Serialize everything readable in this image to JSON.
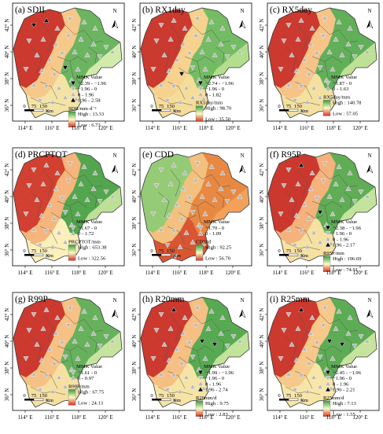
{
  "figure": {
    "axis_labels": {
      "lon_ticks": [
        "114° E",
        "116° E",
        "118° E",
        "120° E"
      ],
      "lat_ticks": [
        "42° N",
        "40° N",
        "38° N",
        "36° N"
      ]
    },
    "north_arrow_label": "N",
    "scale_bar": {
      "labels": [
        "0",
        "75",
        "150"
      ],
      "unit": "Km"
    },
    "mmk_title": "MMK Value",
    "high_prefix": "High : ",
    "low_prefix": "Low : "
  },
  "panels": [
    {
      "id": "a",
      "title": "(a) SDII",
      "colorbar": {
        "label": "SDII/mm·d⁻¹",
        "high": "13.33",
        "low": "6.73",
        "top": "#3a9a3a",
        "mid": "#fbfbc8",
        "bottom": "#d7301f"
      },
      "regions": {
        "west": "#c8312a",
        "center": "#f6c98a",
        "south": "#f2e6a8",
        "east": "#64b45e",
        "coast": "#d8eeb0"
      },
      "mmk_legend": [
        {
          "symbol": "down-black",
          "range": "−2.39 - −1.96"
        },
        {
          "symbol": "down-grey",
          "range": "−1.96 - 0"
        },
        {
          "symbol": "up-grey",
          "range": "0 - 1.96"
        },
        {
          "symbol": "up-black",
          "range": "1.96 - 2.58"
        }
      ]
    },
    {
      "id": "b",
      "title": "(b) RX1day",
      "colorbar": {
        "label": "RX1day/mm",
        "high": "98.70",
        "low": "35.50",
        "top": "#3a9a3a",
        "mid": "#fbfbc8",
        "bottom": "#d7301f"
      },
      "regions": {
        "west": "#c8312a",
        "center": "#f7d28f",
        "south": "#f4dc9a",
        "east": "#6dbb62",
        "coast": "#b5df90"
      },
      "mmk_legend": [
        {
          "symbol": "down-black",
          "range": "−2.74 - −1.96"
        },
        {
          "symbol": "down-grey",
          "range": "−1.96 - 0"
        },
        {
          "symbol": "up-grey",
          "range": "0 - 1.82"
        }
      ]
    },
    {
      "id": "c",
      "title": "(c) RX5day",
      "colorbar": {
        "label": "RX5day/mm",
        "high": "140.78",
        "low": "57.05",
        "top": "#3a9a3a",
        "mid": "#fbfbc8",
        "bottom": "#d7301f"
      },
      "regions": {
        "west": "#c8312a",
        "center": "#f5c489",
        "south": "#f3e2a0",
        "east": "#5aae56",
        "coast": "#c4e49a"
      },
      "mmk_legend": [
        {
          "symbol": "down-grey",
          "range": "−1.87 - 0"
        },
        {
          "symbol": "up-grey",
          "range": "0 - 1.63"
        }
      ]
    },
    {
      "id": "d",
      "title": "(d) PRCPTOT",
      "colorbar": {
        "label": "PRCPTOT/mm",
        "high": "653.38",
        "low": "322.56",
        "top": "#3a9a3a",
        "mid": "#fbfbc8",
        "bottom": "#d7301f"
      },
      "regions": {
        "west": "#cf3a2c",
        "center": "#f4b57c",
        "south": "#fbf2be",
        "east": "#4aa54b",
        "coast": "#c2e39a"
      },
      "mmk_legend": [
        {
          "symbol": "down-grey",
          "range": "−1.67 - 0"
        },
        {
          "symbol": "up-grey",
          "range": "0 - 1.72"
        }
      ]
    },
    {
      "id": "e",
      "title": "(e) CDD",
      "colorbar": {
        "label": "CDD/d",
        "high": "92.25",
        "low": "56.70",
        "top": "#3a9a3a",
        "mid": "#fbfbc8",
        "bottom": "#d7301f"
      },
      "regions": {
        "west": "#8fcb76",
        "center": "#f1c17f",
        "south": "#d8502f",
        "east": "#e6863f",
        "coast": "#f2a25c"
      },
      "mmk_legend": [
        {
          "symbol": "down-grey",
          "range": "−1.70 - 0"
        },
        {
          "symbol": "up-grey",
          "range": "0 - 1.09"
        }
      ]
    },
    {
      "id": "f",
      "title": "(f) R95P",
      "colorbar": {
        "label": "R95P/mm",
        "high": "196.69",
        "low": "74.91",
        "top": "#3a9a3a",
        "mid": "#fbfbc8",
        "bottom": "#d7301f"
      },
      "regions": {
        "west": "#c8312a",
        "center": "#f4b27c",
        "south": "#f6e4a4",
        "east": "#57ad54",
        "coast": "#c9e6a0"
      },
      "mmk_legend": [
        {
          "symbol": "down-black",
          "range": "−2.38 - −1.96"
        },
        {
          "symbol": "down-grey",
          "range": "−1.96 - 0"
        },
        {
          "symbol": "up-grey",
          "range": "0 - 1.96"
        },
        {
          "symbol": "up-black",
          "range": "1.96 - 2.17"
        }
      ]
    },
    {
      "id": "g",
      "title": "(g) R99P",
      "colorbar": {
        "label": "R99P/mm",
        "high": "67.75",
        "low": "24.13",
        "top": "#3a9a3a",
        "mid": "#fbfbc8",
        "bottom": "#d7301f"
      },
      "regions": {
        "west": "#c8312a",
        "center": "#f5c185",
        "south": "#f4e2a2",
        "east": "#5fb05a",
        "coast": "#cbe7a2"
      },
      "mmk_legend": [
        {
          "symbol": "down-grey",
          "range": "−1.61 - 0"
        },
        {
          "symbol": "up-grey",
          "range": "0 - 0.97"
        }
      ]
    },
    {
      "id": "h",
      "title": "(h) R20mm",
      "colorbar": {
        "label": "R20mm/d",
        "high": "9.75",
        "low": "2.83",
        "top": "#3a9a3a",
        "mid": "#fbfbc8",
        "bottom": "#d7301f"
      },
      "regions": {
        "west": "#c8312a",
        "center": "#f5c085",
        "south": "#f6e6a6",
        "east": "#4fa94f",
        "coast": "#c8e69e"
      },
      "mmk_legend": [
        {
          "symbol": "down-black",
          "range": "−1.99 - −1.96"
        },
        {
          "symbol": "down-grey",
          "range": "−1.96 - 0"
        },
        {
          "symbol": "up-grey",
          "range": "0 - 1.96"
        },
        {
          "symbol": "up-black",
          "range": "1.96 - 2.74"
        }
      ]
    },
    {
      "id": "i",
      "title": "(i) R25mm",
      "colorbar": {
        "label": "R25mm/d",
        "high": "7.13",
        "low": "1.55",
        "top": "#3a9a3a",
        "mid": "#fbfbc8",
        "bottom": "#d7301f"
      },
      "regions": {
        "west": "#c8312a",
        "center": "#f6c889",
        "south": "#f7e8aa",
        "east": "#54ab52",
        "coast": "#cce7a2"
      },
      "mmk_legend": [
        {
          "symbol": "down-black",
          "range": "−2.45 - −1.96"
        },
        {
          "symbol": "down-grey",
          "range": "−1.96 - 0"
        },
        {
          "symbol": "up-grey",
          "range": "0 - 1.96"
        },
        {
          "symbol": "up-black",
          "range": "1.96 - 2.21"
        }
      ]
    }
  ]
}
